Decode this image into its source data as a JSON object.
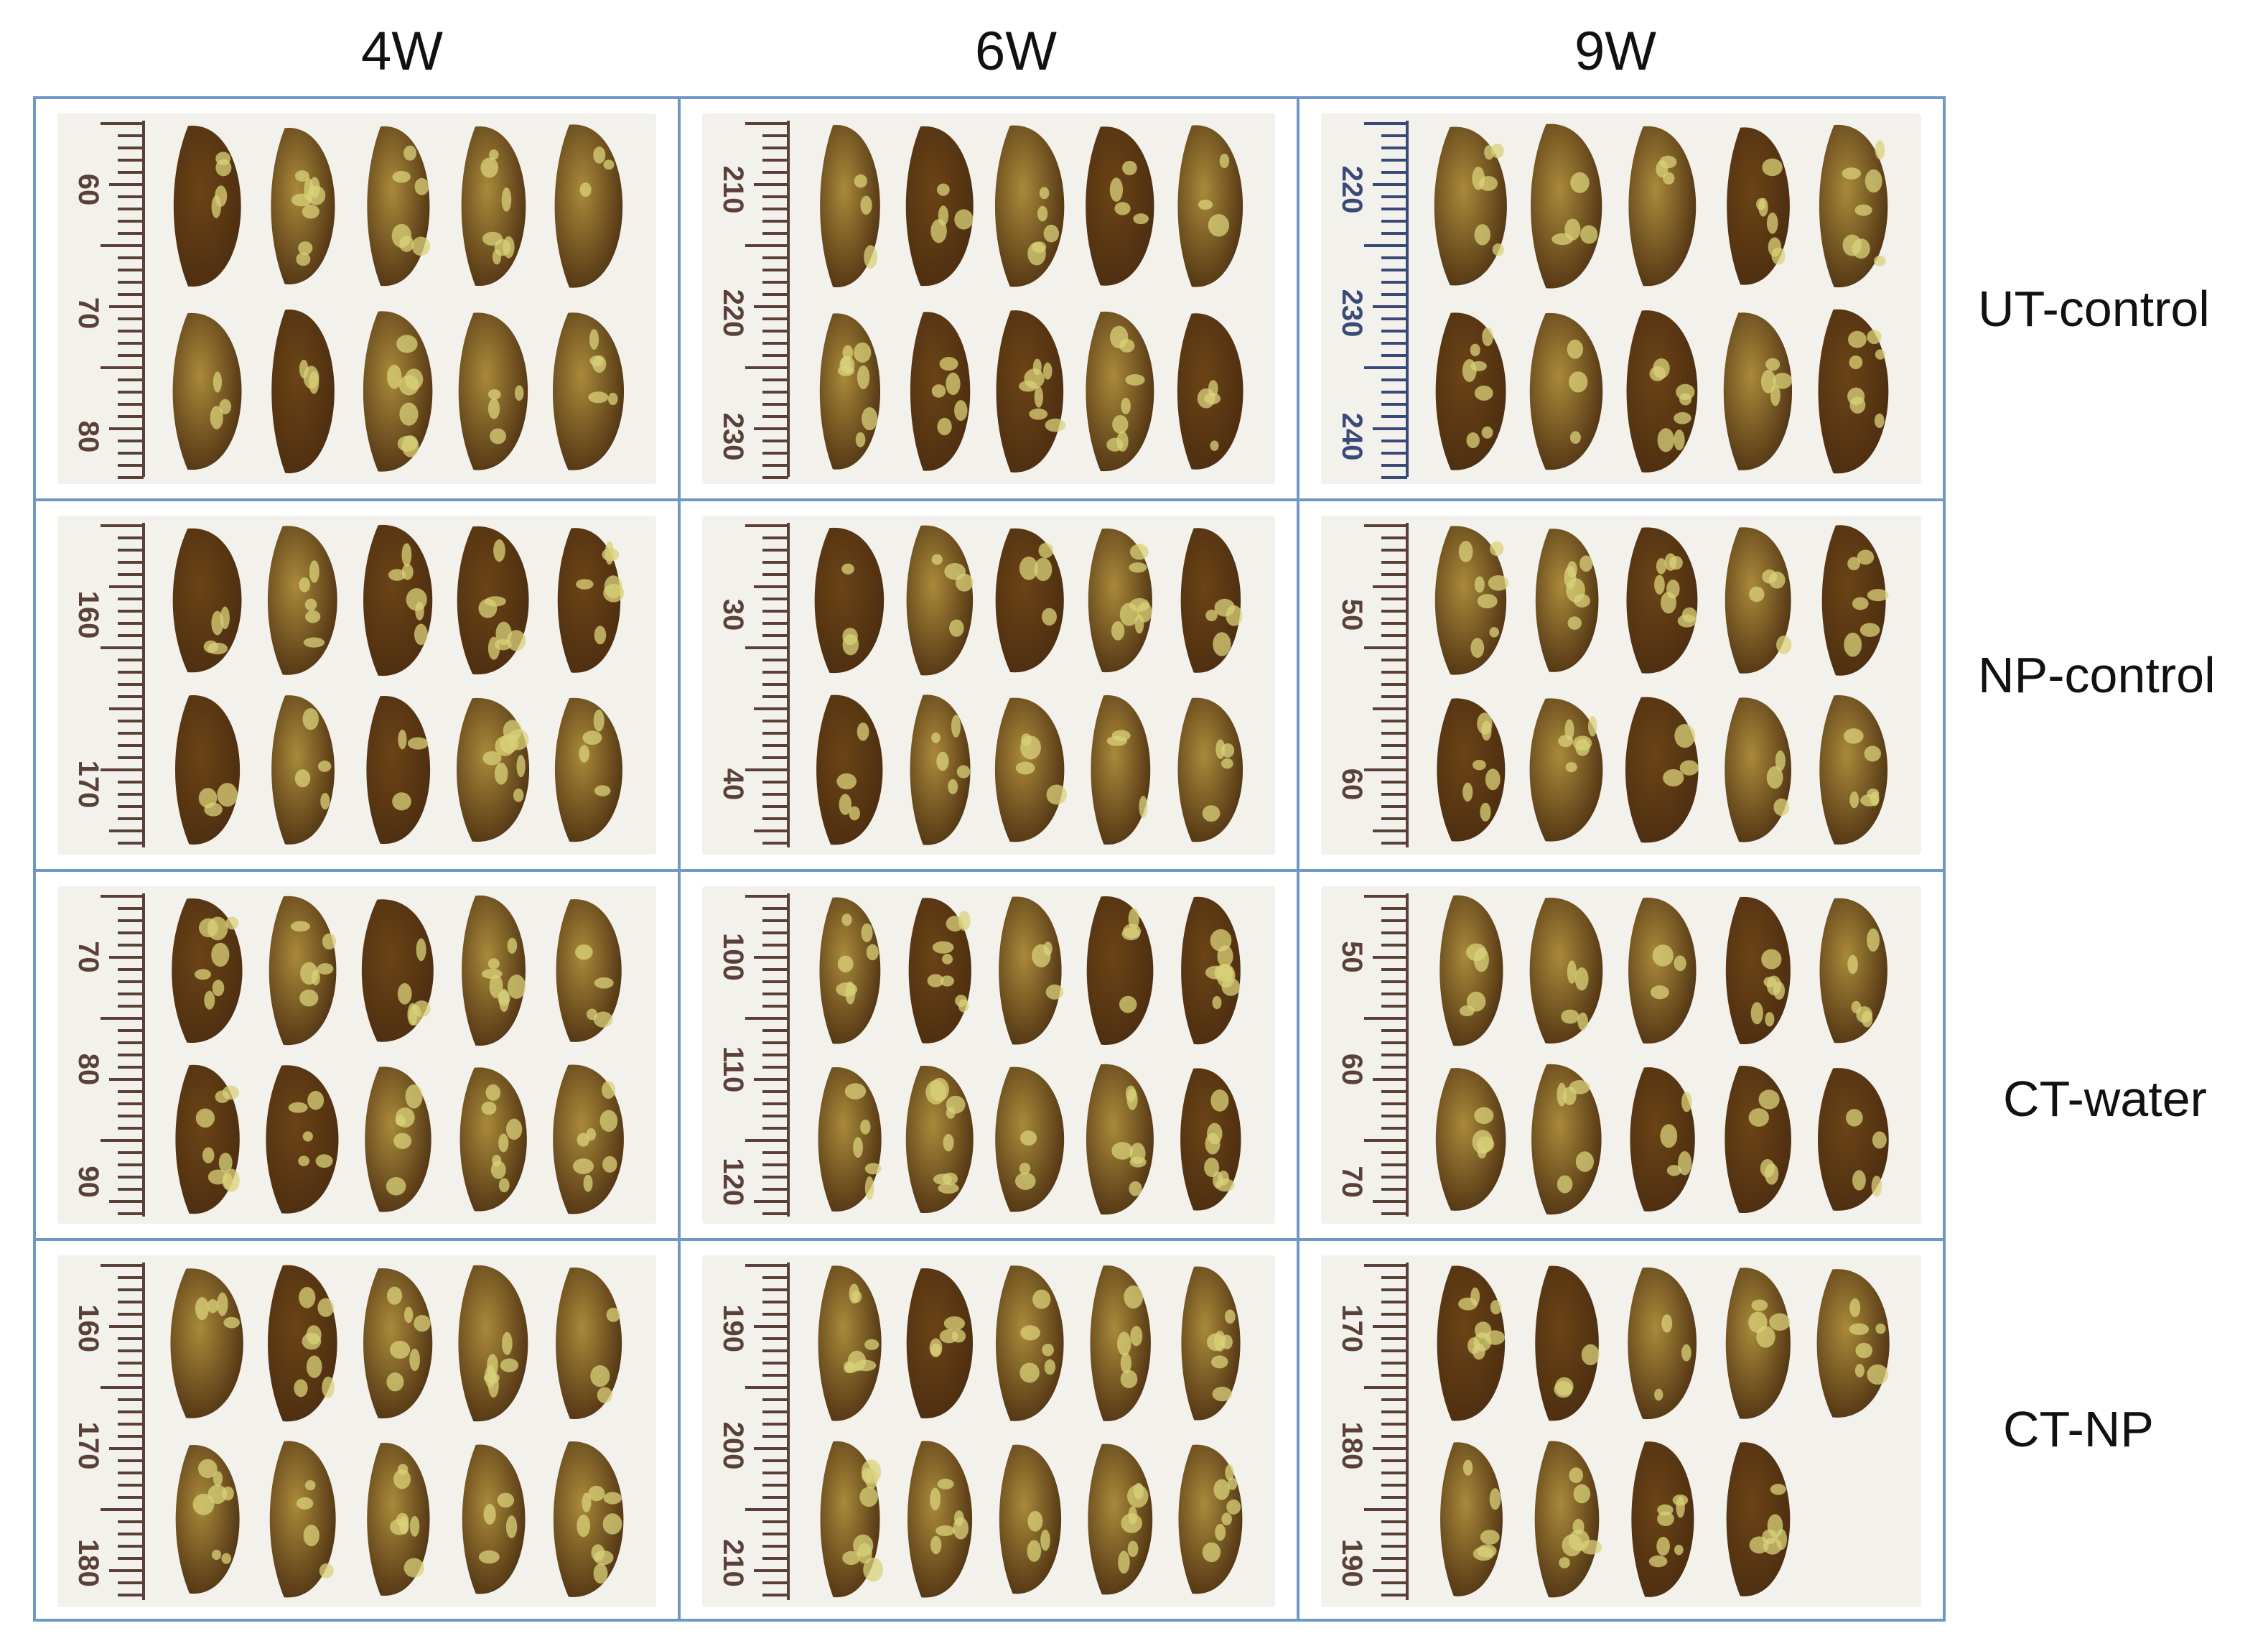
{
  "columns": [
    "4W",
    "6W",
    "9W"
  ],
  "rows": [
    "UT-control",
    "NP-control",
    "CT-water",
    "CT-NP"
  ],
  "ruler_labels": [
    [
      [
        "60",
        "70",
        "80"
      ],
      [
        "210",
        "220",
        "230"
      ],
      [
        "220",
        "230",
        "240"
      ]
    ],
    [
      [
        "160",
        "170"
      ],
      [
        "30",
        "40"
      ],
      [
        "50",
        "60"
      ]
    ],
    [
      [
        "70",
        "80",
        "90"
      ],
      [
        "100",
        "110",
        "120"
      ],
      [
        "50",
        "60",
        "70"
      ]
    ],
    [
      [
        "160",
        "170",
        "180"
      ],
      [
        "190",
        "200",
        "210"
      ],
      [
        "170",
        "180",
        "190"
      ]
    ]
  ],
  "organ_counts": [
    [
      [
        5,
        5
      ],
      [
        5,
        5
      ],
      [
        5,
        5
      ]
    ],
    [
      [
        5,
        5
      ],
      [
        5,
        5
      ],
      [
        5,
        5
      ]
    ],
    [
      [
        5,
        5
      ],
      [
        5,
        5
      ],
      [
        5,
        5
      ]
    ],
    [
      [
        5,
        5
      ],
      [
        5,
        5
      ],
      [
        5,
        4
      ]
    ]
  ],
  "colors": {
    "border": "#6d98c8",
    "photo_bg": "#f3f1ec",
    "ruler": "#5a4038",
    "ruler_blue": "#3a4a78",
    "organ_light": "#a98a3a",
    "organ_dark": "#4a2c10",
    "nodule": "#d9d27a"
  }
}
